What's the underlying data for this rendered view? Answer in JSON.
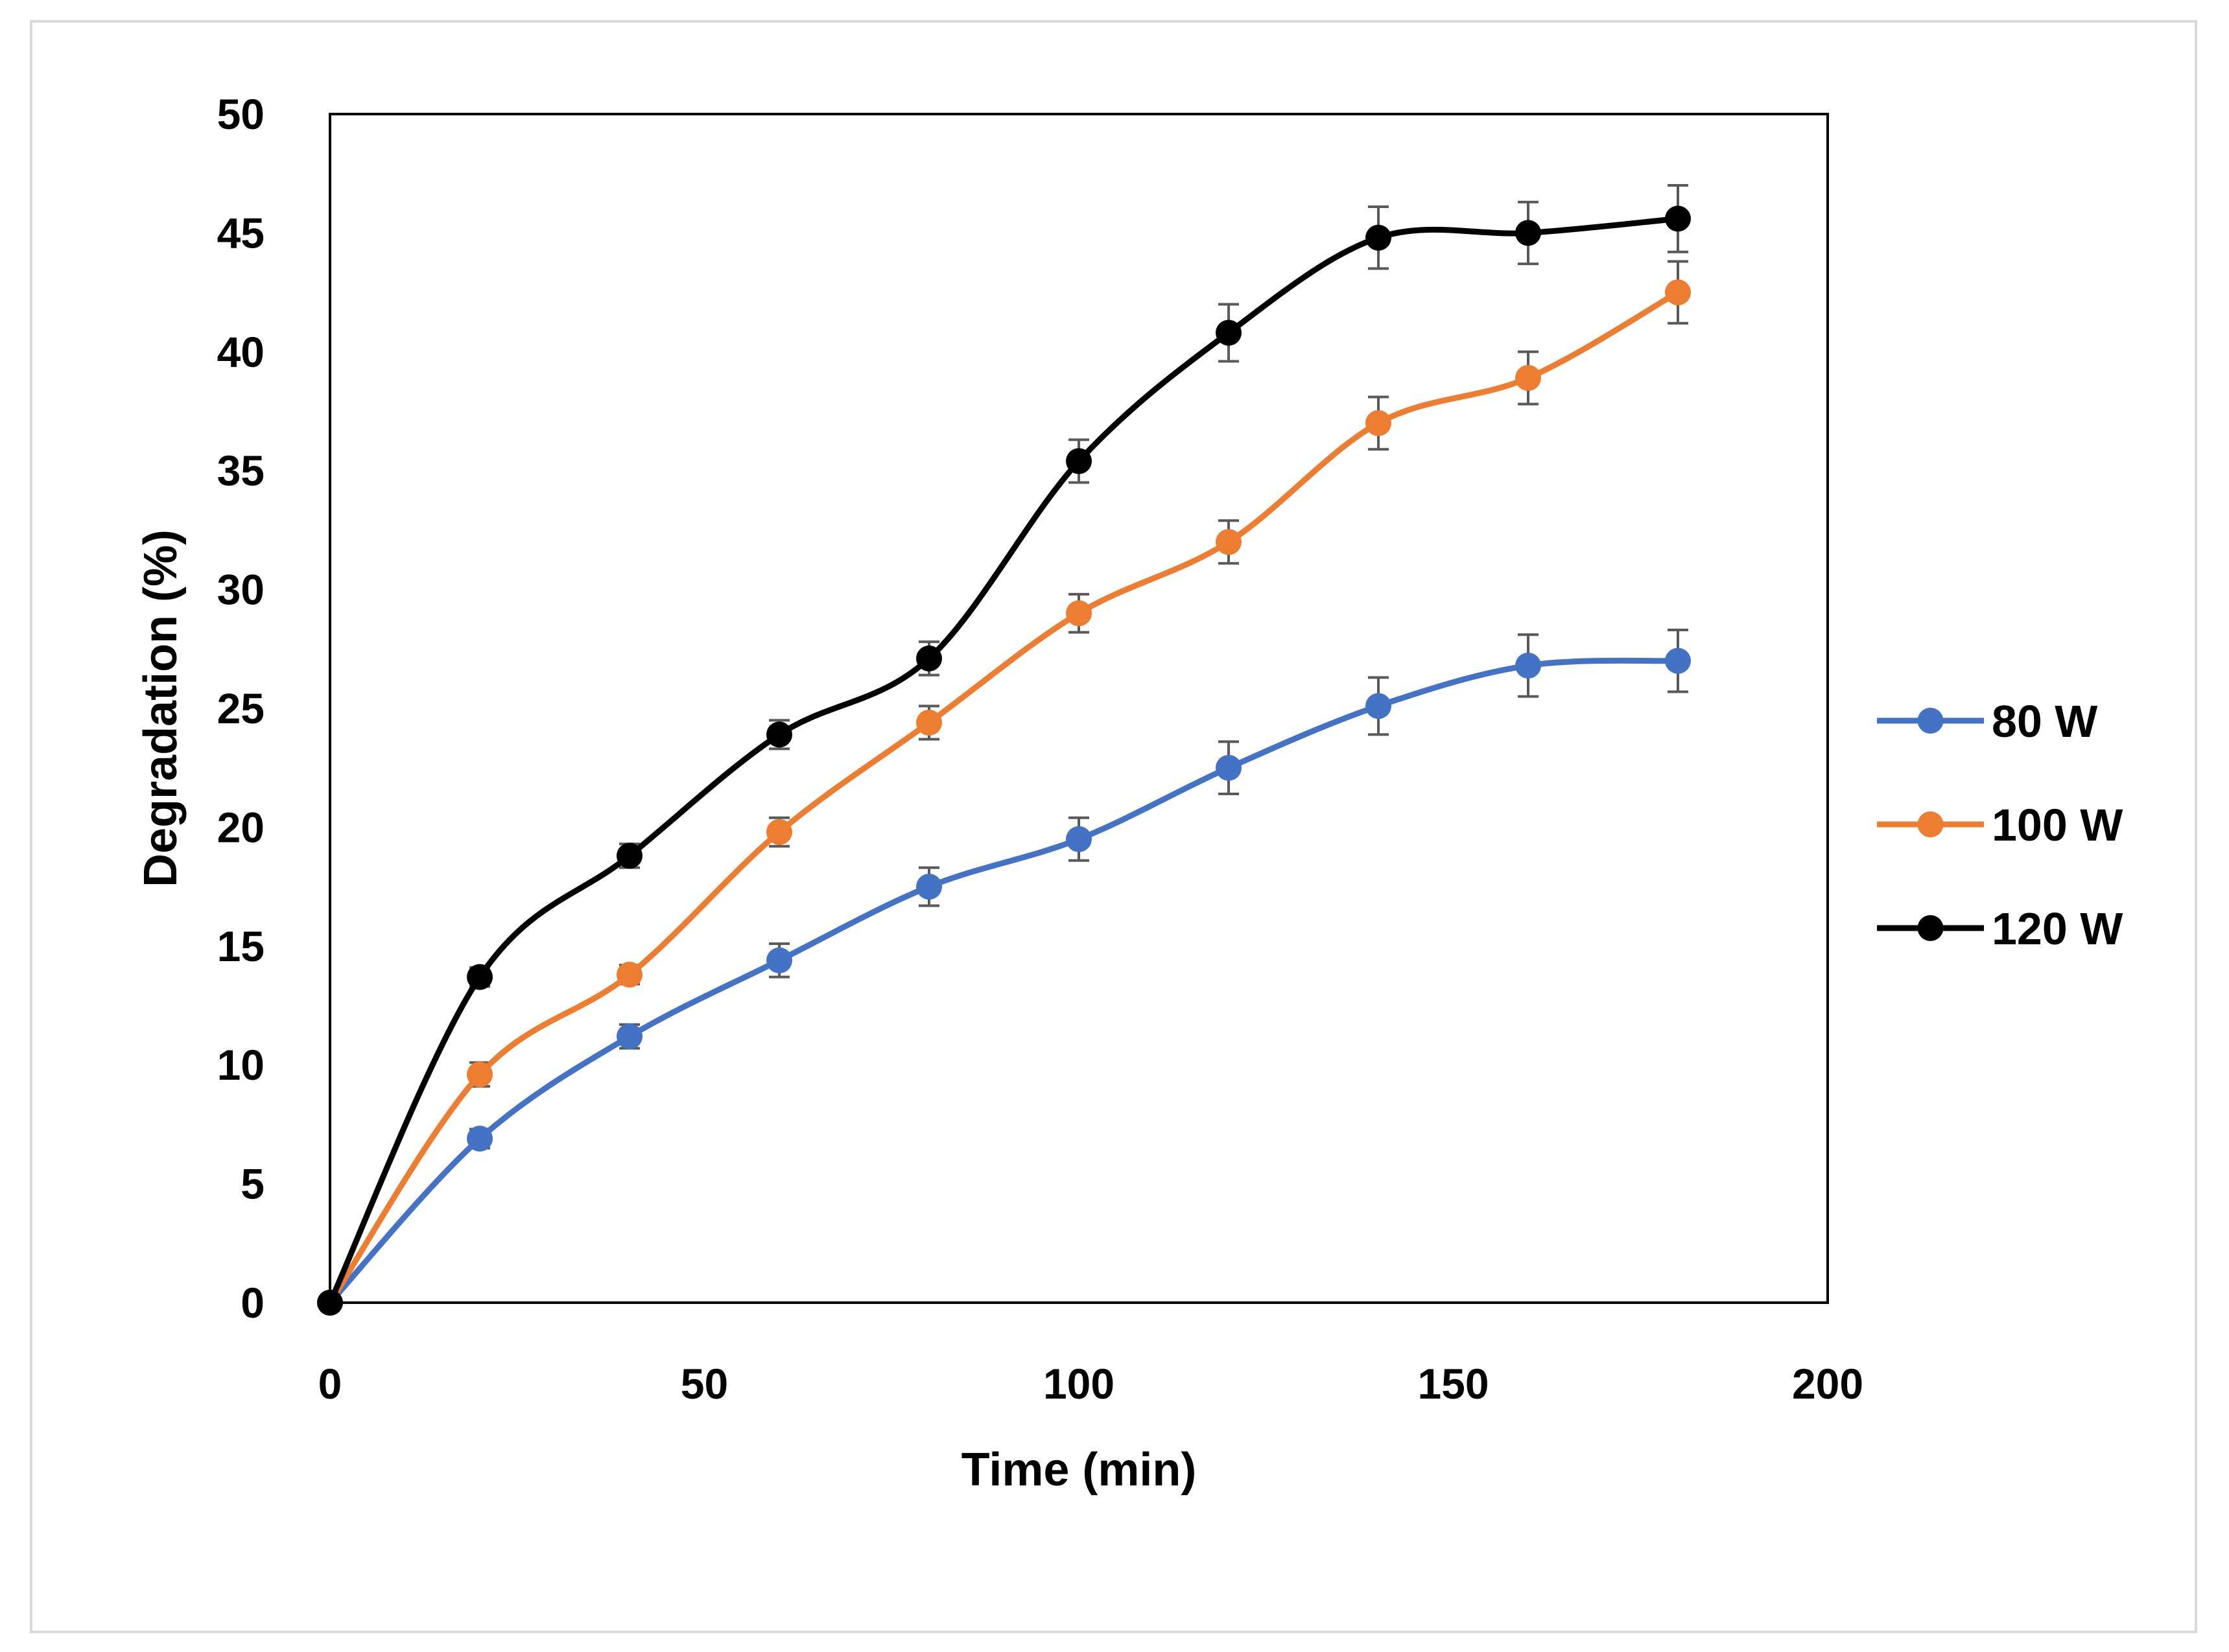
{
  "chart_data": {
    "type": "line",
    "title": "",
    "xlabel": "Time (min)",
    "ylabel": "Degradation (%)",
    "xlim": [
      0,
      200
    ],
    "ylim": [
      0,
      50
    ],
    "xticks": [
      0,
      50,
      100,
      150,
      200
    ],
    "yticks": [
      0,
      5,
      10,
      15,
      20,
      25,
      30,
      35,
      40,
      45,
      50
    ],
    "grid": false,
    "legend_position": "right",
    "x": [
      0,
      20,
      40,
      60,
      80,
      100,
      120,
      140,
      160,
      180
    ],
    "series": [
      {
        "name": "80 W",
        "color": "#4472c4",
        "values": [
          0,
          6.9,
          11.2,
          14.4,
          17.5,
          19.5,
          22.5,
          25.1,
          26.8,
          27.0
        ],
        "errors": [
          0,
          0.4,
          0.5,
          0.7,
          0.8,
          0.9,
          1.1,
          1.2,
          1.3,
          1.3
        ]
      },
      {
        "name": "100 W",
        "color": "#ed7d31",
        "values": [
          0,
          9.6,
          13.8,
          19.8,
          24.4,
          29.0,
          32.0,
          37.0,
          38.9,
          42.5
        ],
        "errors": [
          0,
          0.5,
          0.4,
          0.6,
          0.7,
          0.8,
          0.9,
          1.1,
          1.1,
          1.3
        ]
      },
      {
        "name": "120 W",
        "color": "#000000",
        "values": [
          0,
          13.7,
          18.8,
          23.9,
          27.1,
          35.4,
          40.8,
          44.8,
          45.0,
          45.6
        ],
        "errors": [
          0,
          0.4,
          0.5,
          0.6,
          0.7,
          0.9,
          1.2,
          1.3,
          1.3,
          1.4
        ]
      }
    ]
  }
}
